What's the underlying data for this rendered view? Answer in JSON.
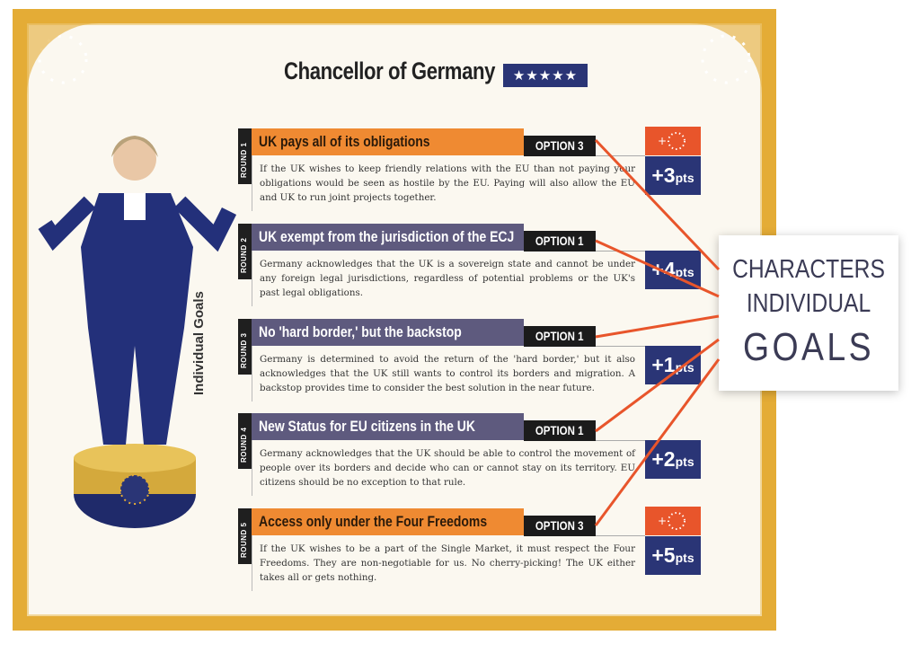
{
  "card": {
    "title": "Chancellor of Germany",
    "rating_stars": 5,
    "stars_text": "★★★★★",
    "side_label": "Individual Goals"
  },
  "rounds": [
    {
      "label": "ROUND 1",
      "title": "UK pays all of its obligations",
      "color": "#ef8a32",
      "option": "OPTION 3",
      "eu_bonus": true,
      "points": "+3",
      "unit": "pts",
      "text": "If the UK wishes to keep friendly relations with the EU than not paying your obligations would be seen as hostile by the EU. Paying will also allow the EU and UK to run joint projects together."
    },
    {
      "label": "ROUND 2",
      "title": "UK exempt from the jurisdiction of the ECJ",
      "color": "#5e5a7e",
      "option": "OPTION 1",
      "eu_bonus": false,
      "points": "+4",
      "unit": "pts",
      "text": "Germany acknowledges that the UK is a sovereign state and cannot be under any foreign legal jurisdictions, regardless of potential problems or the UK's past legal obligations."
    },
    {
      "label": "ROUND 3",
      "title": "No 'hard border,' but the backstop",
      "color": "#5e5a7e",
      "option": "OPTION 1",
      "eu_bonus": false,
      "points": "+1",
      "unit": "pts",
      "text": "Germany is determined to avoid the return of the 'hard border,' but it also acknowledges that the UK still wants to control its borders and migration. A backstop provides time to consider the best solution in the near future."
    },
    {
      "label": "ROUND 4",
      "title": "New Status for EU citizens in the UK",
      "color": "#5e5a7e",
      "option": "OPTION 1",
      "eu_bonus": false,
      "points": "+2",
      "unit": "pts",
      "text": "Germany acknowledges that the UK should be able to control the movement of people over its borders and decide who can or cannot stay on its territory. EU citizens should be no exception to that rule."
    },
    {
      "label": "ROUND 5",
      "title": "Access only under the Four Freedoms",
      "color": "#ef8a32",
      "option": "OPTION 3",
      "eu_bonus": true,
      "points": "+5",
      "unit": "pts",
      "text": "If the UK wishes to be a part of the Single Market, it must respect the Four Freedoms. They are non-negotiable for us. No cherry-picking! The UK either takes all or gets nothing."
    }
  ],
  "callout": {
    "line1": "CHARACTERS",
    "line2": "INDIVIDUAL",
    "line3": "GOALS"
  },
  "colors": {
    "gold": "#e4ac36",
    "navy": "#2a3576",
    "orange": "#ef8a32",
    "purple": "#5e5a7e",
    "eu_red": "#e8552b",
    "connector": "#e8552b"
  }
}
